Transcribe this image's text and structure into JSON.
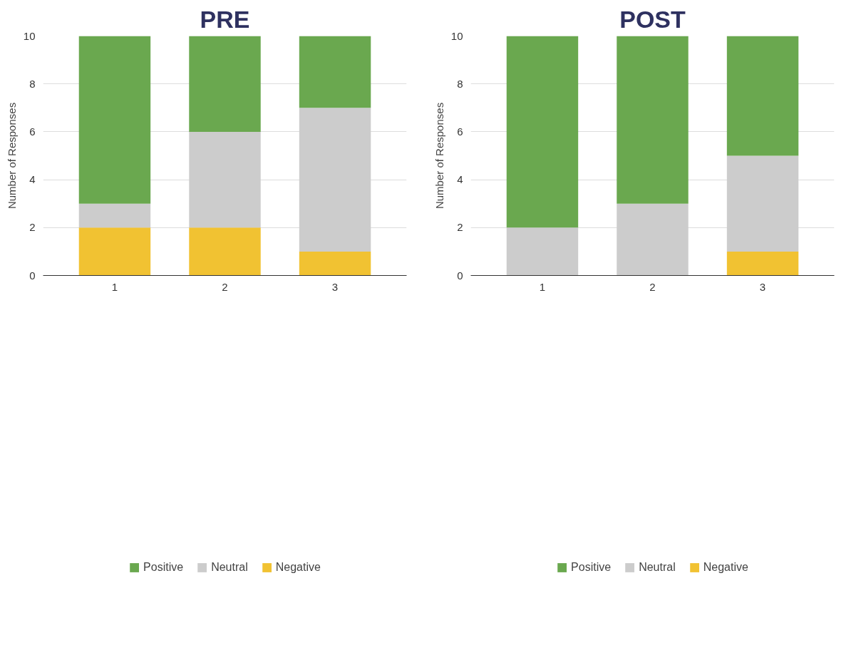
{
  "chart_data": [
    {
      "type": "bar",
      "title": "PRE",
      "ylabel": "Number of Responses",
      "categories": [
        "1",
        "2",
        "3"
      ],
      "stacked": true,
      "ylim": [
        0,
        10
      ],
      "yticks": [
        0,
        2,
        4,
        6,
        8,
        10
      ],
      "grid": "y",
      "legend": "bottom",
      "series": [
        {
          "name": "Negative",
          "color": "#f1c232",
          "values": [
            2,
            2,
            1
          ]
        },
        {
          "name": "Neutral",
          "color": "#cccccc",
          "values": [
            1,
            4,
            6
          ]
        },
        {
          "name": "Positive",
          "color": "#6aa84f",
          "values": [
            7,
            4,
            3
          ]
        }
      ]
    },
    {
      "type": "bar",
      "title": "POST",
      "ylabel": "Number of Responses",
      "categories": [
        "1",
        "2",
        "3"
      ],
      "stacked": true,
      "ylim": [
        0,
        10
      ],
      "yticks": [
        0,
        2,
        4,
        6,
        8,
        10
      ],
      "grid": "y",
      "legend": "bottom",
      "series": [
        {
          "name": "Negative",
          "color": "#f1c232",
          "values": [
            0,
            0,
            1
          ]
        },
        {
          "name": "Neutral",
          "color": "#cccccc",
          "values": [
            2,
            3,
            4
          ]
        },
        {
          "name": "Positive",
          "color": "#6aa84f",
          "values": [
            8,
            7,
            5
          ]
        }
      ]
    }
  ]
}
